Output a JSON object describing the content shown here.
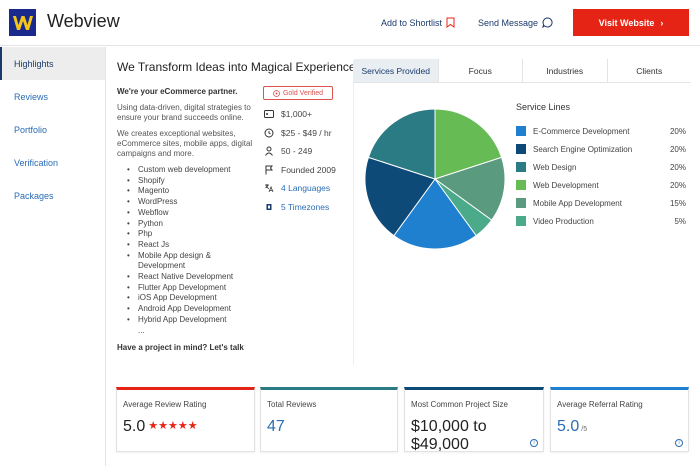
{
  "header": {
    "brand": "Webview",
    "shortlist_label": "Add to Shortlist",
    "message_label": "Send Message",
    "visit_label": "Visit Website",
    "visit_chevron": "›"
  },
  "sidebar": {
    "items": [
      {
        "label": "Highlights",
        "active": true
      },
      {
        "label": "Reviews"
      },
      {
        "label": "Portfolio"
      },
      {
        "label": "Verification"
      },
      {
        "label": "Packages"
      }
    ]
  },
  "main": {
    "title": "We Transform Ideas into Magical Experiences",
    "tagline": "We're your eCommerce partner.",
    "para1": "Using data-driven, digital strategies to ensure your brand succeeds online.",
    "para2": "We creates exceptional websites, eCommerce sites, mobile apps, digital campaigns and more.",
    "services": [
      "Custom web development",
      "Shopify",
      "Magento",
      "WordPress",
      "Webflow",
      "Python",
      "Php",
      "React Js",
      "Mobile App design & Development",
      "React Native Development",
      "Flutter App Development",
      "iOS App Development",
      "Android App Development",
      "Hybrid App Development",
      "..."
    ],
    "cta": "Have a project in mind? Let's talk"
  },
  "facts": {
    "badge": "Gold Verified",
    "min_project": "$1,000+",
    "rate": "$25 - $49 / hr",
    "employees": "50 - 249",
    "founded": "Founded 2009",
    "languages": "4 Languages",
    "timezones": "5 Timezones"
  },
  "tabs": [
    "Services Provided",
    "Focus",
    "Industries",
    "Clients"
  ],
  "chart_data": {
    "type": "pie",
    "title": "Service Lines",
    "slices": [
      {
        "label": "E-Commerce Development",
        "value": 20,
        "pct": "20%",
        "color": "#1f80d0"
      },
      {
        "label": "Search Engine Optimization",
        "value": 20,
        "pct": "20%",
        "color": "#0d4a78"
      },
      {
        "label": "Web Design",
        "value": 20,
        "pct": "20%",
        "color": "#2a7b84"
      },
      {
        "label": "Web Development",
        "value": 20,
        "pct": "20%",
        "color": "#67bb55"
      },
      {
        "label": "Mobile App Development",
        "value": 15,
        "pct": "15%",
        "color": "#5a9a7e"
      },
      {
        "label": "Video Production",
        "value": 5,
        "pct": "5%",
        "color": "#4aaa8a"
      }
    ],
    "draw_order": [
      3,
      4,
      5,
      0,
      1,
      2
    ]
  },
  "cards": [
    {
      "label": "Average Review Rating",
      "value": "5.0",
      "stars": "★★★★★",
      "accent": "#e62415"
    },
    {
      "label": "Total Reviews",
      "value": "47",
      "accent": "#2a7b84"
    },
    {
      "label": "Most Common Project Size",
      "value": "$10,000 to $49,000",
      "accent": "#0d4a78",
      "info": "i"
    },
    {
      "label": "Average Referral Rating",
      "value": "5.0",
      "suffix": "/5",
      "accent": "#1f80d0",
      "info": "i"
    }
  ]
}
